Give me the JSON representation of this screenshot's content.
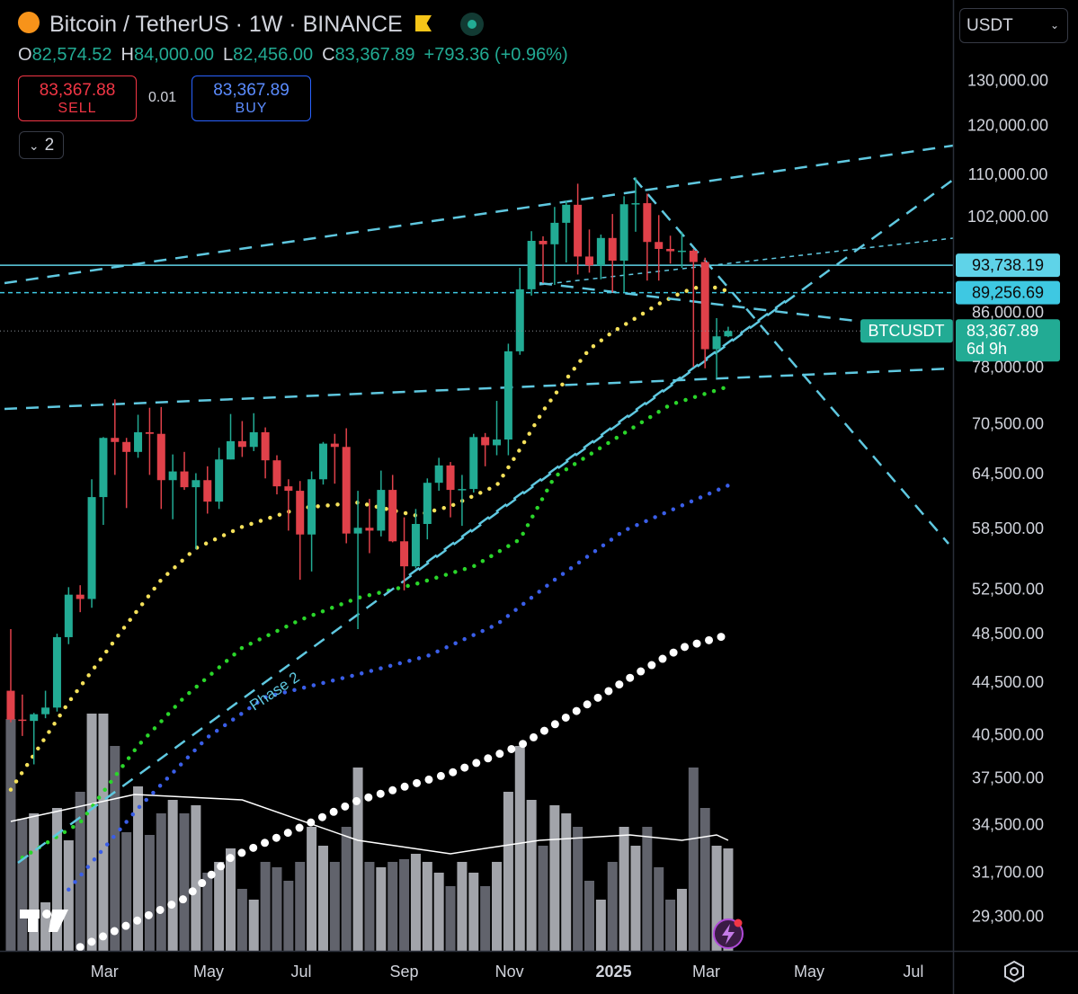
{
  "header": {
    "symbol_title": "Bitcoin / TetherUS · 1W · BINANCE",
    "ohlc": [
      {
        "key": "O",
        "value": "82,574.52"
      },
      {
        "key": "H",
        "value": "84,000.00"
      },
      {
        "key": "L",
        "value": "82,456.00"
      },
      {
        "key": "C",
        "value": "83,367.89"
      }
    ],
    "change": "+793.36 (+0.96%)",
    "sell": {
      "price": "83,367.88",
      "label": "SELL"
    },
    "spread": 0.01,
    "buy": {
      "price": "83,367.89",
      "label": "BUY"
    },
    "indicators_count": 2,
    "currency": "USDT"
  },
  "chart_data": {
    "type": "candlestick",
    "log_scale": true,
    "grid": false,
    "up_color": "#22ab94",
    "down_color": "#e0414a",
    "xlim": [
      -0.93,
      81.43
    ],
    "xticks": [
      {
        "value": 8.1,
        "label": "Mar"
      },
      {
        "value": 17.1,
        "label": "May"
      },
      {
        "value": 25.1,
        "label": "Jul"
      },
      {
        "value": 34.0,
        "label": "Sep"
      },
      {
        "value": 43.1,
        "label": "Nov"
      },
      {
        "value": 52.1,
        "label": "2025",
        "bold": true
      },
      {
        "value": 60.1,
        "label": "Mar"
      },
      {
        "value": 69.0,
        "label": "May"
      },
      {
        "value": 78.0,
        "label": "Jul"
      }
    ],
    "ylim": [
      27610,
      150400
    ],
    "yticks": [
      {
        "value": 130000,
        "label": "130,000.00"
      },
      {
        "value": 120000,
        "label": "120,000.00"
      },
      {
        "value": 110000,
        "label": "110,000.00"
      },
      {
        "value": 102000,
        "label": "102,000.00"
      },
      {
        "value": 86000,
        "label": "86,000.00"
      },
      {
        "value": 78000,
        "label": "78,000.00"
      },
      {
        "value": 70500,
        "label": "70,500.00"
      },
      {
        "value": 64500,
        "label": "64,500.00"
      },
      {
        "value": 58500,
        "label": "58,500.00"
      },
      {
        "value": 52500,
        "label": "52,500.00"
      },
      {
        "value": 48500,
        "label": "48,500.00"
      },
      {
        "value": 44500,
        "label": "44,500.00"
      },
      {
        "value": 40500,
        "label": "40,500.00"
      },
      {
        "value": 37500,
        "label": "37,500.00"
      },
      {
        "value": 34500,
        "label": "34,500.00"
      },
      {
        "value": 31700,
        "label": "31,700.00"
      },
      {
        "value": 29300,
        "label": "29,300.00"
      }
    ],
    "open": [
      43900,
      41700,
      41600,
      42100,
      42600,
      48300,
      52100,
      51700,
      62000,
      68900,
      68400,
      67200,
      69600,
      69400,
      63900,
      64900,
      63100,
      63900,
      61500,
      66300,
      68500,
      67800,
      69600,
      66200,
      63200,
      62700,
      58000,
      64000,
      68200,
      67800,
      58100,
      58700,
      58400,
      62800,
      57300,
      54800,
      59100,
      63600,
      65600,
      62800,
      62900,
      69000,
      68000,
      68700,
      80400,
      89800,
      97900,
      97300,
      101100,
      104400,
      95200,
      93700,
      98400,
      94500,
      104500,
      104700,
      97700,
      96500,
      96100,
      96200,
      94270,
      80700,
      82574.52
    ],
    "high": [
      49000,
      43600,
      42200,
      43900,
      48600,
      52800,
      52985,
      64000,
      69000,
      73800,
      68900,
      71800,
      72700,
      72800,
      66900,
      67200,
      64700,
      65500,
      67700,
      71900,
      71000,
      72000,
      70200,
      66800,
      64000,
      63800,
      64900,
      68400,
      69400,
      70100,
      62700,
      61800,
      65000,
      64500,
      59800,
      60700,
      64100,
      66500,
      66000,
      64500,
      69400,
      69500,
      73600,
      81500,
      93300,
      99600,
      98700,
      104000,
      105200,
      108400,
      99900,
      99000,
      102700,
      106000,
      109600,
      106500,
      102500,
      98800,
      99500,
      96500,
      95000,
      85300,
      84000
    ],
    "low": [
      41500,
      40500,
      38500,
      41800,
      42300,
      47700,
      50500,
      50900,
      59000,
      64500,
      60800,
      66500,
      64500,
      60700,
      59600,
      62800,
      56500,
      60200,
      60700,
      66300,
      66600,
      67300,
      64100,
      62300,
      58400,
      53500,
      54300,
      63400,
      63500,
      57100,
      49000,
      56100,
      57800,
      57200,
      52500,
      54600,
      57500,
      62700,
      59800,
      58900,
      62500,
      65500,
      66800,
      66800,
      79900,
      88800,
      90800,
      90500,
      94200,
      92200,
      92500,
      91400,
      89300,
      89300,
      99500,
      91200,
      91200,
      94000,
      93300,
      78200,
      78000,
      76600,
      82456
    ],
    "close": [
      41700,
      41600,
      42100,
      42600,
      48300,
      52100,
      51700,
      62000,
      68900,
      68400,
      67200,
      69600,
      69400,
      63900,
      64900,
      63100,
      63900,
      61500,
      66300,
      68500,
      67800,
      69600,
      66200,
      63200,
      62700,
      58000,
      64000,
      68200,
      67800,
      58100,
      58700,
      58400,
      62800,
      57300,
      54800,
      59100,
      63600,
      65600,
      62800,
      62900,
      69000,
      68000,
      68700,
      80400,
      89800,
      97900,
      97300,
      101100,
      104400,
      95200,
      93700,
      98400,
      94500,
      104500,
      104700,
      97700,
      96500,
      96100,
      96200,
      94270,
      80700,
      82574.52,
      83367.89
    ],
    "volume": {
      "ylim": [
        0,
        100
      ],
      "color_up": "#b4b6bd",
      "color_down": "#6b6e78",
      "values": [
        86,
        49,
        51,
        18,
        53,
        41,
        59,
        88,
        88,
        76,
        44,
        61,
        43,
        51,
        56,
        51,
        54,
        29,
        33,
        38,
        23,
        19,
        33,
        31,
        26,
        33,
        46,
        39,
        33,
        46,
        68,
        33,
        31,
        33,
        34,
        36,
        33,
        29,
        24,
        33,
        29,
        24,
        33,
        59,
        76,
        56,
        39,
        54,
        51,
        46,
        26,
        19,
        33,
        46,
        39,
        46,
        31,
        19,
        23,
        68,
        53,
        39,
        38
      ]
    },
    "volume_ma": {
      "color": "#ffffff",
      "x": [
        0,
        10.7,
        20,
        30,
        38,
        41,
        45.7,
        53.5,
        58,
        61,
        62
      ],
      "values": [
        48,
        58,
        56,
        41,
        36,
        38,
        41,
        43,
        41,
        43,
        41
      ]
    },
    "overlays": [
      {
        "color": "#f5e15a",
        "style": "dots",
        "x": [
          0,
          5,
          10,
          13,
          16,
          20,
          25,
          30,
          35,
          38,
          42,
          44,
          46,
          48,
          50,
          52,
          54,
          56,
          58,
          60,
          62
        ],
        "values": [
          36800,
          43000,
          49400,
          53500,
          56600,
          58800,
          60800,
          61400,
          60000,
          61000,
          63300,
          67500,
          72300,
          76500,
          80700,
          83200,
          85300,
          87500,
          89300,
          90500,
          89500
        ]
      },
      {
        "color": "#2ad62a",
        "style": "dots",
        "x": [
          1,
          6,
          11,
          15,
          20,
          25,
          30,
          35,
          40,
          44,
          47,
          52,
          57,
          62
        ],
        "values": [
          32600,
          34700,
          39800,
          43400,
          47400,
          49800,
          51800,
          53100,
          54800,
          57500,
          64300,
          68600,
          73100,
          75500
        ]
      },
      {
        "color": "#3a5ee8",
        "style": "dots",
        "x": [
          5,
          11,
          17,
          22,
          30,
          36,
          42,
          47,
          53,
          62
        ],
        "values": [
          30800,
          35600,
          40400,
          43400,
          45200,
          46700,
          49400,
          53500,
          58400,
          63300
        ]
      },
      {
        "color": "#ffffff",
        "style": "large-dots",
        "x": [
          6,
          15,
          19,
          25,
          30,
          38,
          44,
          49,
          54,
          58,
          62
        ],
        "values": [
          27800,
          30300,
          32600,
          34400,
          36100,
          37900,
          39800,
          42400,
          45200,
          47400,
          48500
        ]
      }
    ],
    "price_lines": [
      {
        "value": 93738.19,
        "label": "93,738.19",
        "color": "#5fd3e8",
        "style": "solid"
      },
      {
        "value": 89256.69,
        "label": "89,256.69",
        "color": "#3ec8e2",
        "style": "dashed"
      }
    ],
    "last_price": {
      "value": 83367.89,
      "label": "83,367.89",
      "countdown": "6d 9h",
      "symbol": "BTCUSDT",
      "color": "#22ab94"
    },
    "annotation": "Phase 2"
  }
}
